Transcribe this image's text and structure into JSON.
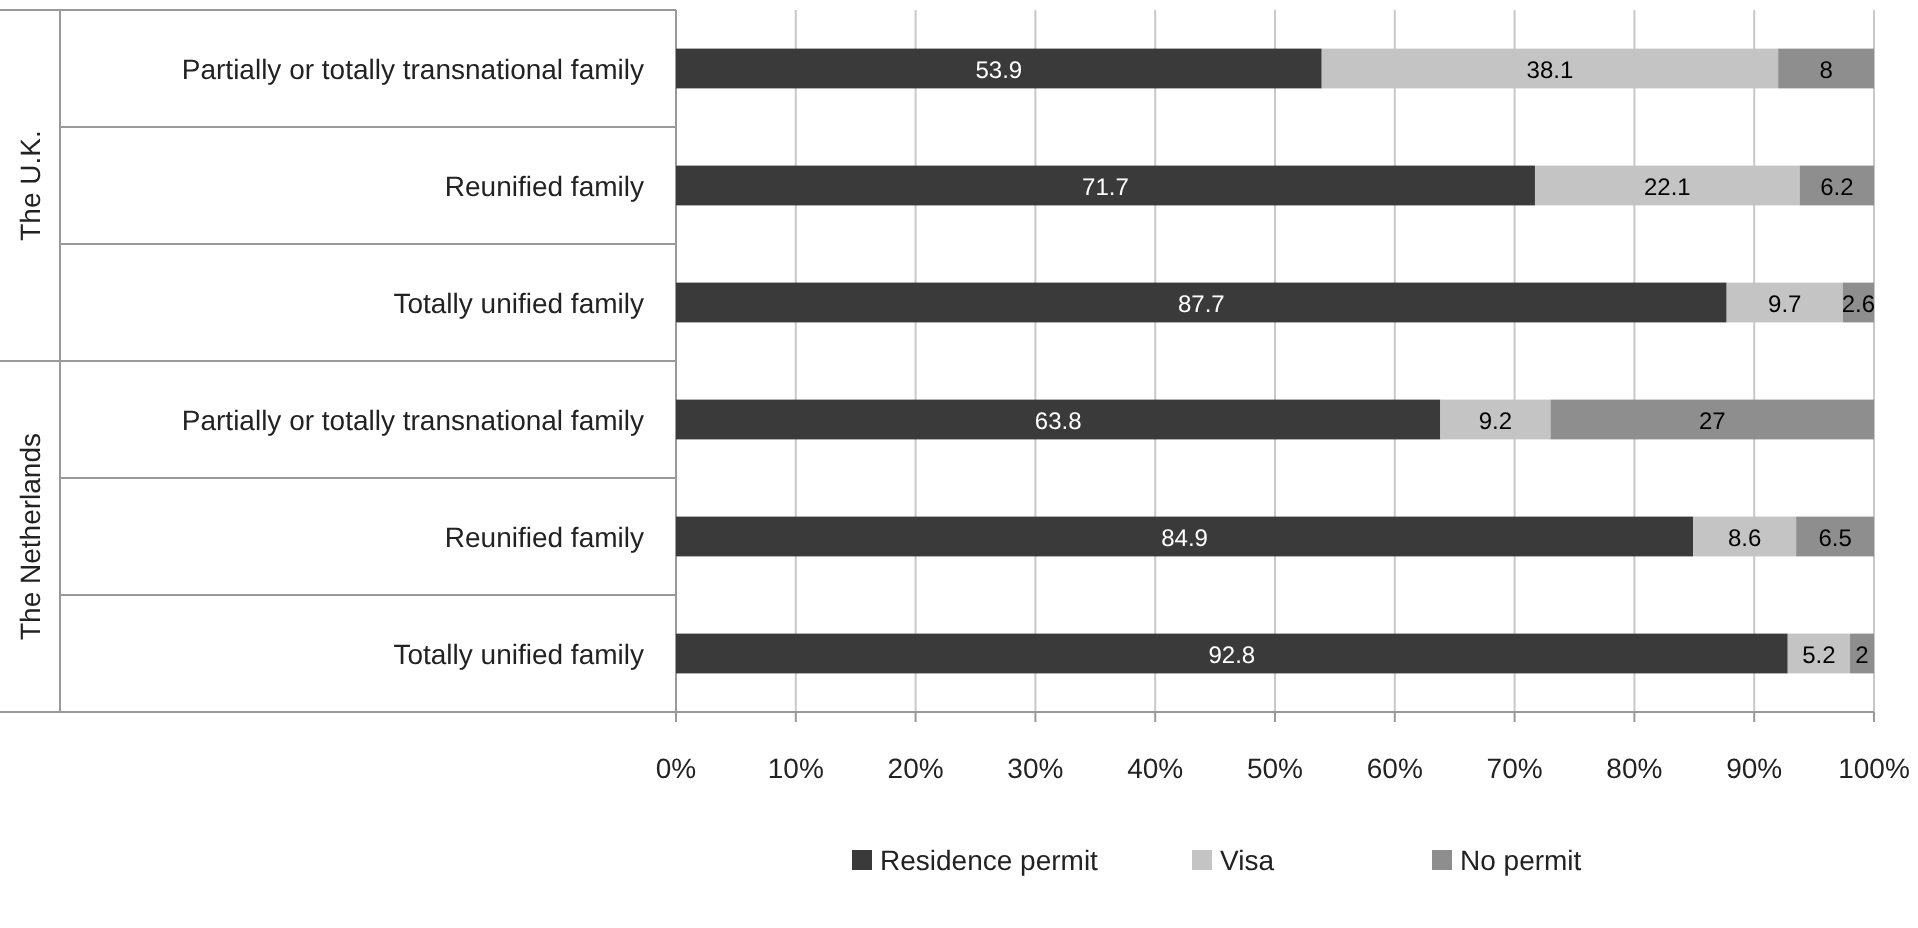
{
  "chart_data": {
    "type": "bar",
    "orientation": "horizontal",
    "stacked": true,
    "categories": [
      "Partially or totally transnational family",
      "Reunified family",
      "Totally unified family",
      "Partially or totally transnational family",
      "Reunified family",
      "Totally unified family"
    ],
    "annotations": [
      "The U.K.",
      "The Netherlands"
    ],
    "series": [
      {
        "name": "Residence permit",
        "color": "#3a3a3a",
        "values": [
          53.9,
          71.7,
          87.7,
          63.8,
          84.9,
          92.8
        ]
      },
      {
        "name": "Visa",
        "color": "#c4c4c4",
        "values": [
          38.1,
          22.1,
          9.7,
          9.2,
          8.6,
          5.2
        ]
      },
      {
        "name": "No permit",
        "color": "#8e8e8e",
        "values": [
          8,
          6.2,
          2.6,
          27,
          6.5,
          2
        ]
      }
    ],
    "xlim": [
      0,
      100
    ],
    "xticks": [
      {
        "value": 0,
        "label": "0%"
      },
      {
        "value": 10,
        "label": "10%"
      },
      {
        "value": 20,
        "label": "20%"
      },
      {
        "value": 30,
        "label": "30%"
      },
      {
        "value": 40,
        "label": "40%"
      },
      {
        "value": 50,
        "label": "50%"
      },
      {
        "value": 60,
        "label": "60%"
      },
      {
        "value": 70,
        "label": "70%"
      },
      {
        "value": 80,
        "label": "80%"
      },
      {
        "value": 90,
        "label": "90%"
      },
      {
        "value": 100,
        "label": "100%"
      }
    ],
    "grid": "x",
    "legend": "bottom",
    "data_labels": true
  }
}
